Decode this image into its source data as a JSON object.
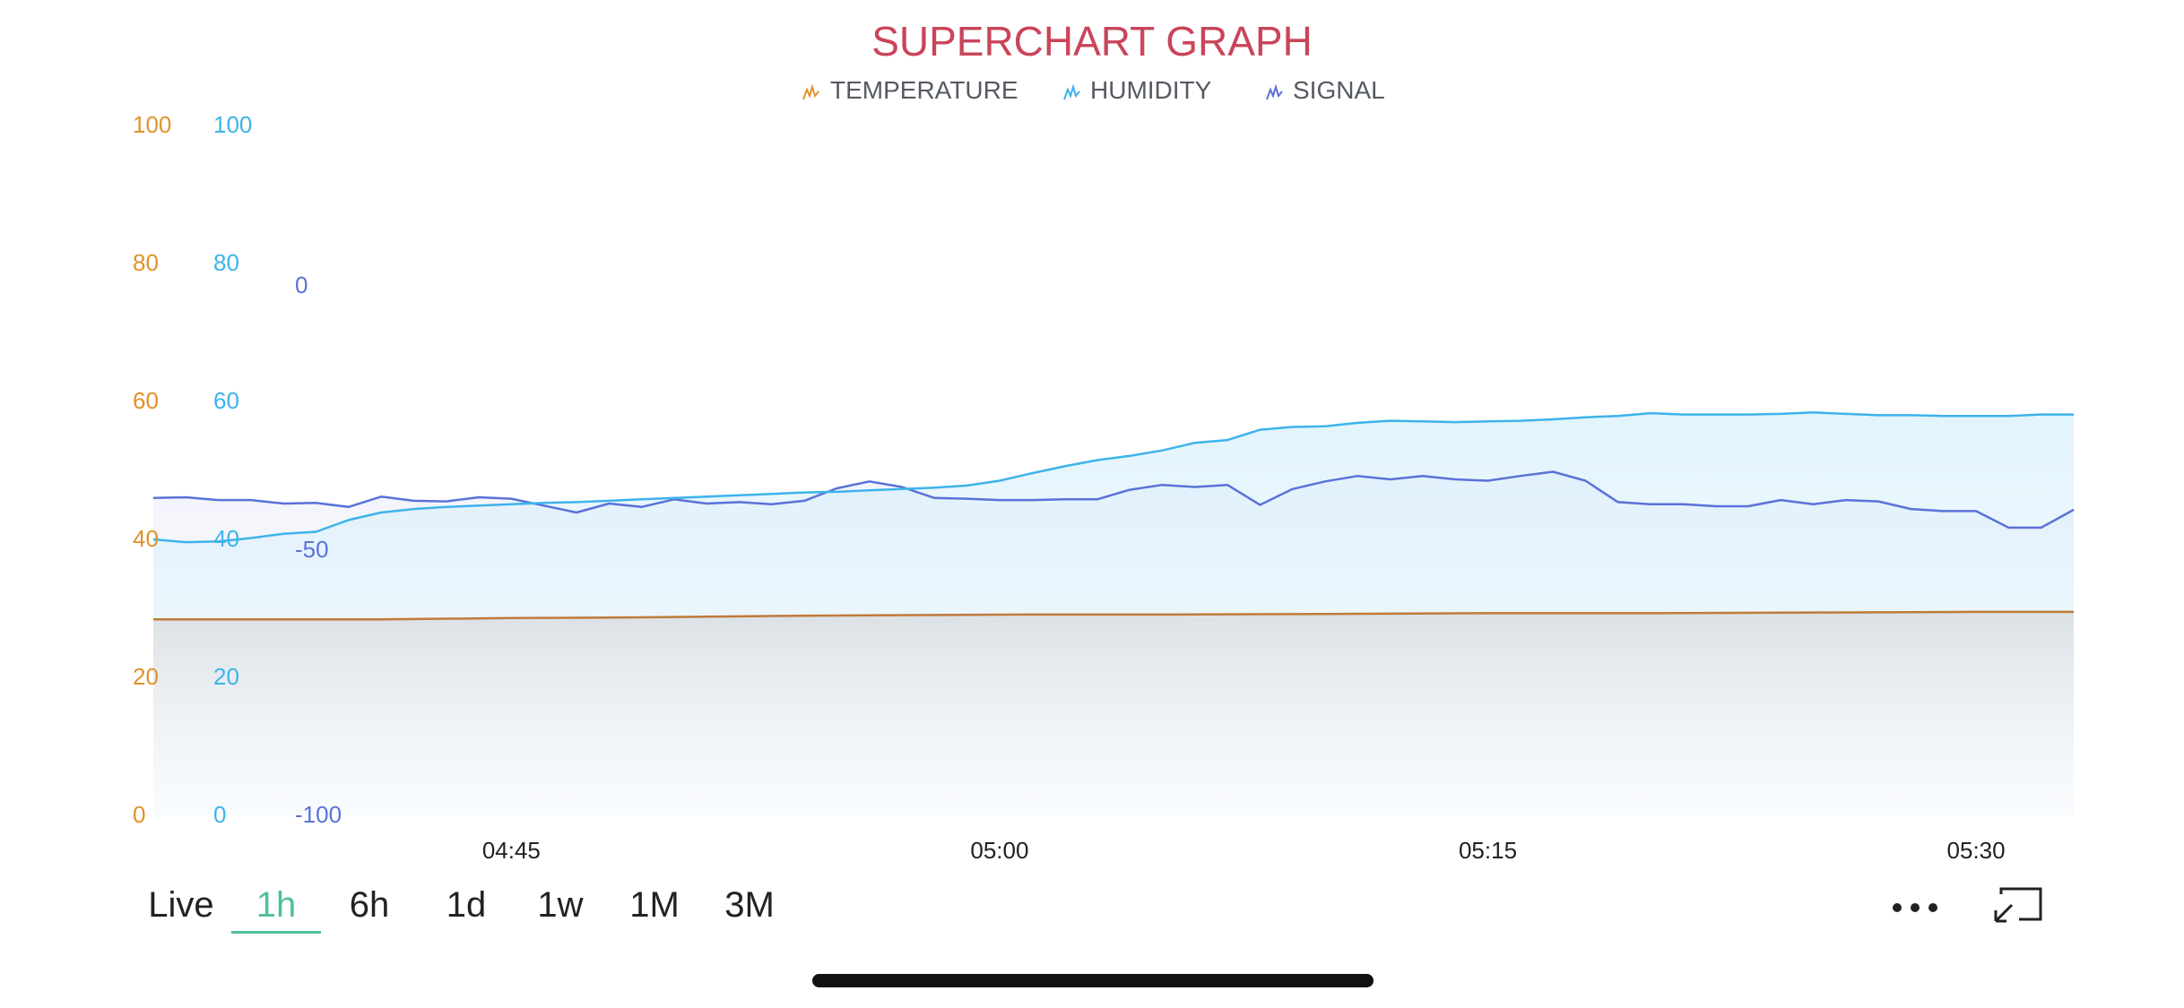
{
  "title": "SUPERCHART GRAPH",
  "colors": {
    "title": "#c9455a",
    "temperature": "#e0922a",
    "humidity": "#3db3ea",
    "signal": "#5a72d8",
    "temperature_line": "#c07a3a"
  },
  "legend": [
    {
      "label": "TEMPERATURE",
      "icon": "temperature-wave-icon",
      "color": "#e0922a"
    },
    {
      "label": "HUMIDITY",
      "icon": "humidity-wave-icon",
      "color": "#3db3ea"
    },
    {
      "label": "SIGNAL",
      "icon": "signal-wave-icon",
      "color": "#5a72d8"
    }
  ],
  "time_ranges": [
    "Live",
    "1h",
    "6h",
    "1d",
    "1w",
    "1M",
    "3M"
  ],
  "active_range": "1h",
  "icons": {
    "more": "more-dots-icon",
    "expand": "fullscreen-exit-icon"
  },
  "chart_data": {
    "type": "area",
    "title": "SUPERCHART GRAPH",
    "x_tick_labels": [
      "04:45",
      "05:00",
      "05:15",
      "05:30"
    ],
    "x_tick_minutes": [
      45,
      60,
      75,
      90
    ],
    "x_range_minutes": [
      34,
      93
    ],
    "axes": [
      {
        "id": "temperature",
        "ticks": [
          "100",
          "80",
          "60",
          "40",
          "20",
          "0"
        ],
        "range": [
          0,
          100
        ]
      },
      {
        "id": "humidity",
        "ticks": [
          "100",
          "80",
          "60",
          "40",
          "20",
          "0"
        ],
        "range": [
          0,
          100
        ]
      },
      {
        "id": "signal",
        "ticks": [
          "0",
          "-50",
          "-100"
        ],
        "range": [
          -100,
          0
        ]
      }
    ],
    "grid": false,
    "legend_position": "top-center",
    "series": [
      {
        "name": "TEMPERATURE",
        "axis": "temperature",
        "x": [
          34,
          41,
          45,
          49,
          53,
          56,
          61,
          65,
          70,
          75,
          80,
          85,
          90,
          93
        ],
        "values": [
          28.4,
          28.4,
          28.6,
          28.7,
          28.9,
          29.0,
          29.1,
          29.1,
          29.2,
          29.3,
          29.3,
          29.4,
          29.5,
          29.5
        ]
      },
      {
        "name": "HUMIDITY",
        "axis": "humidity",
        "x": [
          34,
          35,
          36,
          37,
          38,
          39,
          40,
          41,
          42,
          43,
          44,
          45,
          46,
          47,
          48,
          49,
          50,
          51,
          52,
          53,
          54,
          55,
          56,
          57,
          58,
          59,
          60,
          61,
          62,
          63,
          64,
          65,
          66,
          67,
          68,
          69,
          70,
          71,
          72,
          73,
          74,
          75,
          76,
          77,
          78,
          79,
          80,
          81,
          82,
          83,
          84,
          85,
          86,
          87,
          88,
          89,
          90,
          91,
          92,
          93
        ],
        "values": [
          40.0,
          39.6,
          39.7,
          40.2,
          40.8,
          41.1,
          42.8,
          43.9,
          44.4,
          44.7,
          44.9,
          45.1,
          45.3,
          45.4,
          45.6,
          45.8,
          46.0,
          46.2,
          46.4,
          46.6,
          46.8,
          46.9,
          47.1,
          47.3,
          47.5,
          47.8,
          48.5,
          49.6,
          50.6,
          51.5,
          52.1,
          52.9,
          54.0,
          54.4,
          55.9,
          56.3,
          56.4,
          56.9,
          57.2,
          57.1,
          57.0,
          57.1,
          57.2,
          57.4,
          57.7,
          57.9,
          58.3,
          58.1,
          58.1,
          58.1,
          58.2,
          58.4,
          58.2,
          58.0,
          58.0,
          57.9,
          57.9,
          57.9,
          58.1,
          58.1
        ]
      },
      {
        "name": "SIGNAL",
        "axis": "signal",
        "x": [
          34,
          35,
          36,
          37,
          38,
          39,
          40,
          41,
          42,
          43,
          44,
          45,
          46,
          47,
          48,
          49,
          50,
          51,
          52,
          53,
          54,
          55,
          56,
          57,
          58,
          59,
          60,
          61,
          62,
          63,
          64,
          65,
          66,
          67,
          68,
          69,
          70,
          71,
          72,
          73,
          74,
          75,
          76,
          77,
          78,
          79,
          80,
          81,
          82,
          83,
          84,
          85,
          86,
          87,
          88,
          89,
          90,
          91,
          92,
          93
        ],
        "values": [
          -54.0,
          -53.9,
          -54.3,
          -54.3,
          -54.8,
          -54.7,
          -55.3,
          -53.8,
          -54.4,
          -54.5,
          -53.9,
          -54.1,
          -55.1,
          -56.1,
          -54.8,
          -55.3,
          -54.2,
          -54.8,
          -54.6,
          -54.9,
          -54.4,
          -52.6,
          -51.6,
          -52.4,
          -54.0,
          -54.1,
          -54.3,
          -54.3,
          -54.2,
          -54.2,
          -52.8,
          -52.1,
          -52.4,
          -52.1,
          -55.0,
          -52.7,
          -51.6,
          -50.8,
          -51.3,
          -50.8,
          -51.3,
          -51.5,
          -50.8,
          -50.2,
          -51.5,
          -54.6,
          -54.9,
          -54.9,
          -55.2,
          -55.2,
          -54.3,
          -54.9,
          -54.3,
          -54.5,
          -55.6,
          -55.9,
          -55.9,
          -58.3,
          -58.3,
          -55.7
        ]
      }
    ]
  }
}
